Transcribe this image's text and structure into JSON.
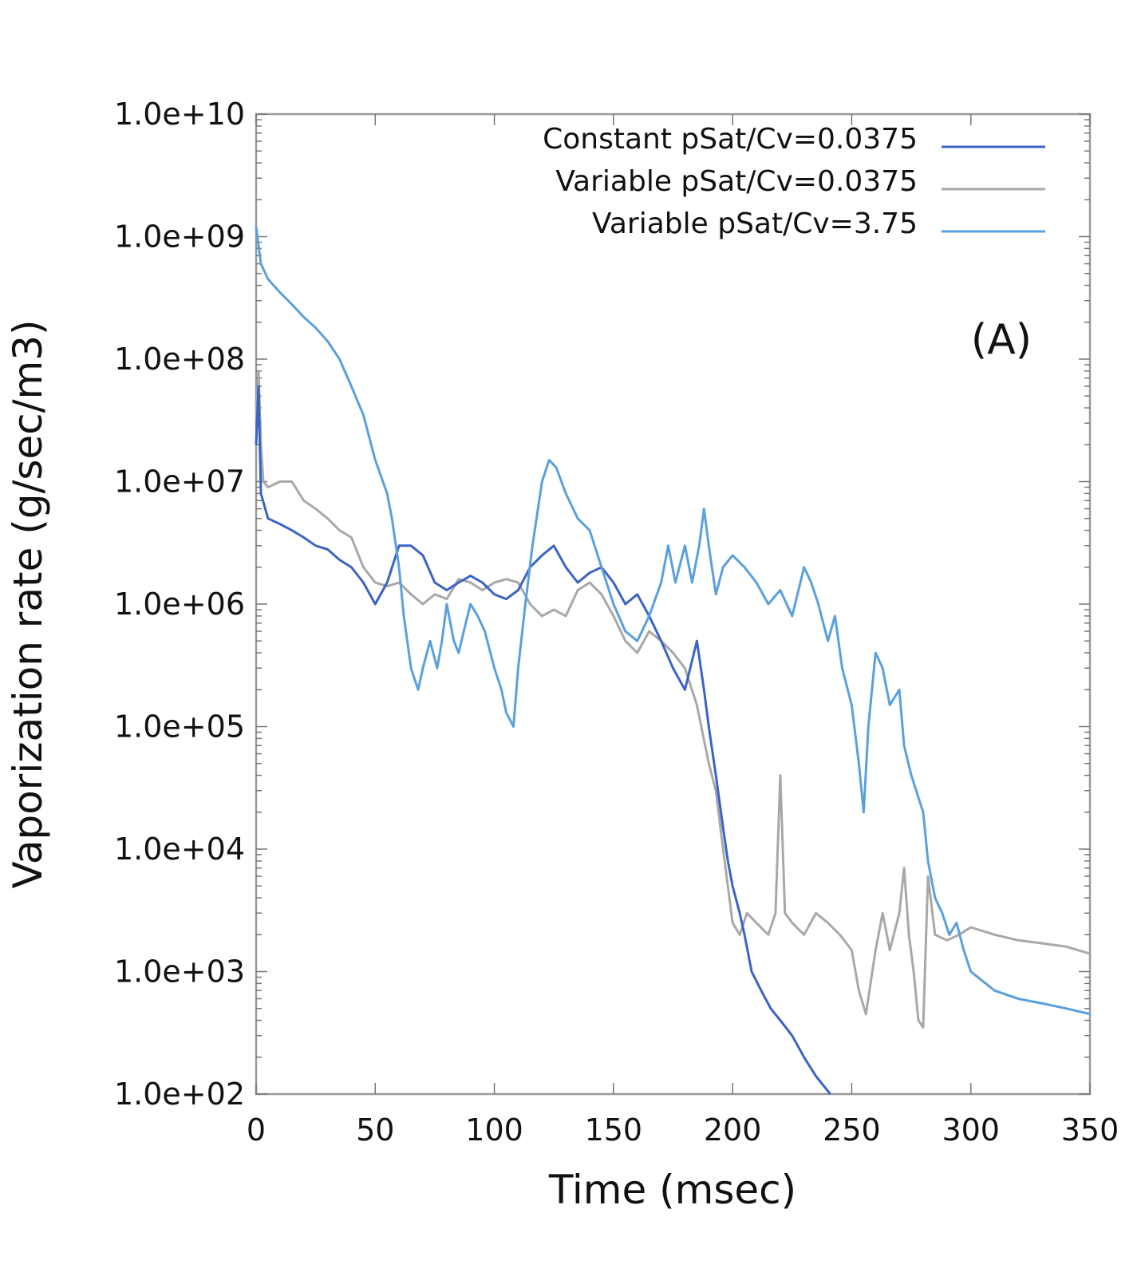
{
  "chart_data": {
    "type": "line",
    "title": "",
    "panel_label": "(A)",
    "xlabel": "Time (msec)",
    "ylabel": "Vaporization rate (g/sec/m3)",
    "xlim": [
      0,
      350
    ],
    "ylim": [
      100,
      10000000000
    ],
    "yscale": "log",
    "grid": false,
    "legend_position": "top-right",
    "x_ticks": [
      0,
      50,
      100,
      150,
      200,
      250,
      300,
      350
    ],
    "x_tick_labels": [
      "0",
      "50",
      "100",
      "150",
      "200",
      "250",
      "300",
      "350"
    ],
    "y_ticks": [
      100,
      1000,
      10000,
      100000,
      1000000,
      10000000,
      100000000,
      1000000000,
      10000000000
    ],
    "y_tick_labels": [
      "1.0e+02",
      "1.0e+03",
      "1.0e+04",
      "1.0e+05",
      "1.0e+06",
      "1.0e+07",
      "1.0e+08",
      "1.0e+09",
      "1.0e+10"
    ],
    "series": [
      {
        "name": "Constant pSat/Cv=0.0375",
        "color": "#3a64c4",
        "points": [
          [
            0,
            20000000.0
          ],
          [
            1,
            60000000.0
          ],
          [
            2,
            8000000.0
          ],
          [
            5,
            5000000.0
          ],
          [
            10,
            4500000.0
          ],
          [
            15,
            4000000.0
          ],
          [
            20,
            3500000.0
          ],
          [
            25,
            3000000.0
          ],
          [
            30,
            2800000.0
          ],
          [
            35,
            2300000.0
          ],
          [
            40,
            2000000.0
          ],
          [
            45,
            1500000.0
          ],
          [
            50,
            1000000.0
          ],
          [
            55,
            1500000.0
          ],
          [
            60,
            3000000.0
          ],
          [
            65,
            3000000.0
          ],
          [
            70,
            2500000.0
          ],
          [
            75,
            1500000.0
          ],
          [
            80,
            1300000.0
          ],
          [
            85,
            1500000.0
          ],
          [
            90,
            1700000.0
          ],
          [
            95,
            1500000.0
          ],
          [
            100,
            1200000.0
          ],
          [
            105,
            1100000.0
          ],
          [
            110,
            1300000.0
          ],
          [
            115,
            2000000.0
          ],
          [
            120,
            2500000.0
          ],
          [
            125,
            3000000.0
          ],
          [
            130,
            2000000.0
          ],
          [
            135,
            1500000.0
          ],
          [
            140,
            1800000.0
          ],
          [
            145,
            2000000.0
          ],
          [
            150,
            1500000.0
          ],
          [
            155,
            1000000.0
          ],
          [
            160,
            1200000.0
          ],
          [
            165,
            800000.0
          ],
          [
            170,
            500000.0
          ],
          [
            175,
            300000.0
          ],
          [
            180,
            200000.0
          ],
          [
            185,
            500000.0
          ],
          [
            188,
            200000.0
          ],
          [
            190,
            100000.0
          ],
          [
            193,
            40000.0
          ],
          [
            196,
            15000.0
          ],
          [
            198,
            8000.0
          ],
          [
            200,
            5000.0
          ],
          [
            203,
            3000.0
          ],
          [
            205,
            2000.0
          ],
          [
            208,
            1000.0
          ],
          [
            212,
            700.0
          ],
          [
            216,
            500.0
          ],
          [
            220,
            400.0
          ],
          [
            225,
            300.0
          ],
          [
            230,
            200.0
          ],
          [
            235,
            140.0
          ],
          [
            241,
            100.0
          ]
        ]
      },
      {
        "name": "Variable pSat/Cv=0.0375",
        "color": "#a8a8a8",
        "points": [
          [
            0,
            30000000.0
          ],
          [
            1,
            80000000.0
          ],
          [
            2,
            20000000.0
          ],
          [
            3,
            10000000.0
          ],
          [
            5,
            9000000.0
          ],
          [
            10,
            10000000.0
          ],
          [
            15,
            10000000.0
          ],
          [
            20,
            7000000.0
          ],
          [
            25,
            6000000.0
          ],
          [
            30,
            5000000.0
          ],
          [
            35,
            4000000.0
          ],
          [
            40,
            3500000.0
          ],
          [
            45,
            2000000.0
          ],
          [
            50,
            1500000.0
          ],
          [
            55,
            1400000.0
          ],
          [
            60,
            1500000.0
          ],
          [
            65,
            1200000.0
          ],
          [
            70,
            1000000.0
          ],
          [
            75,
            1200000.0
          ],
          [
            80,
            1100000.0
          ],
          [
            85,
            1600000.0
          ],
          [
            90,
            1500000.0
          ],
          [
            95,
            1300000.0
          ],
          [
            100,
            1500000.0
          ],
          [
            105,
            1600000.0
          ],
          [
            110,
            1500000.0
          ],
          [
            115,
            1000000.0
          ],
          [
            120,
            800000.0
          ],
          [
            125,
            900000.0
          ],
          [
            130,
            800000.0
          ],
          [
            135,
            1300000.0
          ],
          [
            140,
            1500000.0
          ],
          [
            145,
            1200000.0
          ],
          [
            150,
            800000.0
          ],
          [
            155,
            500000.0
          ],
          [
            160,
            400000.0
          ],
          [
            165,
            600000.0
          ],
          [
            170,
            500000.0
          ],
          [
            175,
            400000.0
          ],
          [
            180,
            300000.0
          ],
          [
            185,
            150000.0
          ],
          [
            190,
            50000.0
          ],
          [
            193,
            30000.0
          ],
          [
            196,
            10000.0
          ],
          [
            198,
            5000.0
          ],
          [
            200,
            2500.0
          ],
          [
            203,
            2000.0
          ],
          [
            206,
            3000.0
          ],
          [
            210,
            2500.0
          ],
          [
            215,
            2000.0
          ],
          [
            218,
            3000.0
          ],
          [
            220,
            40000.0
          ],
          [
            222,
            3000.0
          ],
          [
            225,
            2500.0
          ],
          [
            230,
            2000.0
          ],
          [
            235,
            3000.0
          ],
          [
            240,
            2500.0
          ],
          [
            245,
            2000.0
          ],
          [
            250,
            1500.0
          ],
          [
            253,
            700.0
          ],
          [
            256,
            450.0
          ],
          [
            260,
            1500.0
          ],
          [
            263,
            3000.0
          ],
          [
            266,
            1500.0
          ],
          [
            270,
            3000.0
          ],
          [
            272,
            7000.0
          ],
          [
            274,
            2000.0
          ],
          [
            276,
            1000.0
          ],
          [
            278,
            400.0
          ],
          [
            280,
            350.0
          ],
          [
            282,
            6000.0
          ],
          [
            285,
            2000.0
          ],
          [
            290,
            1800.0
          ],
          [
            295,
            2000.0
          ],
          [
            300,
            2300.0
          ],
          [
            310,
            2000.0
          ],
          [
            320,
            1800.0
          ],
          [
            330,
            1700.0
          ],
          [
            340,
            1600.0
          ],
          [
            350,
            1400.0
          ]
        ]
      },
      {
        "name": "Variable pSat/Cv=3.75",
        "color": "#5aa0dc",
        "points": [
          [
            0,
            1200000000.0
          ],
          [
            2,
            600000000.0
          ],
          [
            5,
            450000000.0
          ],
          [
            10,
            350000000.0
          ],
          [
            15,
            280000000.0
          ],
          [
            20,
            220000000.0
          ],
          [
            25,
            180000000.0
          ],
          [
            30,
            140000000.0
          ],
          [
            35,
            100000000.0
          ],
          [
            40,
            60000000.0
          ],
          [
            45,
            35000000.0
          ],
          [
            50,
            15000000.0
          ],
          [
            55,
            8000000.0
          ],
          [
            57,
            5000000.0
          ],
          [
            60,
            2000000.0
          ],
          [
            62,
            800000.0
          ],
          [
            65,
            300000.0
          ],
          [
            68,
            200000.0
          ],
          [
            70,
            300000.0
          ],
          [
            73,
            500000.0
          ],
          [
            76,
            300000.0
          ],
          [
            78,
            500000.0
          ],
          [
            80,
            1000000.0
          ],
          [
            83,
            500000.0
          ],
          [
            85,
            400000.0
          ],
          [
            88,
            700000.0
          ],
          [
            90,
            1000000.0
          ],
          [
            93,
            800000.0
          ],
          [
            96,
            600000.0
          ],
          [
            100,
            300000.0
          ],
          [
            103,
            200000.0
          ],
          [
            105,
            130000.0
          ],
          [
            108,
            100000.0
          ],
          [
            110,
            300000.0
          ],
          [
            113,
            1000000.0
          ],
          [
            116,
            3000000.0
          ],
          [
            120,
            10000000.0
          ],
          [
            123,
            15000000.0
          ],
          [
            126,
            13000000.0
          ],
          [
            130,
            8000000.0
          ],
          [
            135,
            5000000.0
          ],
          [
            140,
            4000000.0
          ],
          [
            145,
            2000000.0
          ],
          [
            150,
            1000000.0
          ],
          [
            155,
            600000.0
          ],
          [
            160,
            500000.0
          ],
          [
            165,
            800000.0
          ],
          [
            170,
            1500000.0
          ],
          [
            173,
            3000000.0
          ],
          [
            176,
            1500000.0
          ],
          [
            180,
            3000000.0
          ],
          [
            183,
            1500000.0
          ],
          [
            186,
            3000000.0
          ],
          [
            188,
            6000000.0
          ],
          [
            190,
            3000000.0
          ],
          [
            193,
            1200000.0
          ],
          [
            196,
            2000000.0
          ],
          [
            200,
            2500000.0
          ],
          [
            205,
            2000000.0
          ],
          [
            210,
            1500000.0
          ],
          [
            215,
            1000000.0
          ],
          [
            220,
            1300000.0
          ],
          [
            225,
            800000.0
          ],
          [
            230,
            2000000.0
          ],
          [
            233,
            1500000.0
          ],
          [
            236,
            1000000.0
          ],
          [
            240,
            500000.0
          ],
          [
            243,
            800000.0
          ],
          [
            246,
            300000.0
          ],
          [
            250,
            150000.0
          ],
          [
            253,
            50000.0
          ],
          [
            255,
            20000.0
          ],
          [
            257,
            100000.0
          ],
          [
            260,
            400000.0
          ],
          [
            263,
            300000.0
          ],
          [
            266,
            150000.0
          ],
          [
            270,
            200000.0
          ],
          [
            272,
            70000.0
          ],
          [
            275,
            40000.0
          ],
          [
            280,
            20000.0
          ],
          [
            282,
            8000.0
          ],
          [
            285,
            4000.0
          ],
          [
            288,
            3000.0
          ],
          [
            291,
            2000.0
          ],
          [
            294,
            2500.0
          ],
          [
            297,
            1500.0
          ],
          [
            300,
            1000.0
          ],
          [
            310,
            700.0
          ],
          [
            320,
            600.0
          ],
          [
            330,
            550.0
          ],
          [
            340,
            500.0
          ],
          [
            350,
            450.0
          ]
        ]
      }
    ]
  }
}
